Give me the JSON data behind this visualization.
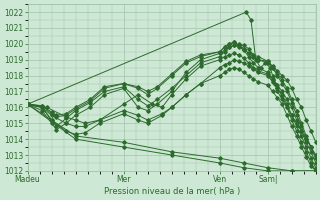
{
  "xlabel": "Pression niveau de la mer( hPa )",
  "background_color": "#cde8d4",
  "plot_bg_color": "#cde8d4",
  "grid_color": "#9abba0",
  "line_color": "#2d6a2d",
  "ylim": [
    1012,
    1022.5
  ],
  "yticks": [
    1012,
    1013,
    1014,
    1015,
    1016,
    1017,
    1018,
    1019,
    1020,
    1021,
    1022
  ],
  "xtick_labels": [
    "Madeu",
    "Mer",
    "Ven",
    "Sam|"
  ],
  "xtick_positions": [
    0,
    2,
    4,
    5
  ],
  "total_days": 6,
  "series": [
    {
      "points": [
        [
          0,
          1016.2
        ],
        [
          0.3,
          1016.0
        ],
        [
          0.5,
          1015.2
        ],
        [
          0.6,
          1014.8
        ],
        [
          0.8,
          1015.3
        ],
        [
          1.0,
          1015.8
        ],
        [
          1.3,
          1016.3
        ],
        [
          1.6,
          1017.0
        ],
        [
          2.0,
          1017.3
        ],
        [
          2.3,
          1016.5
        ],
        [
          2.5,
          1016.1
        ],
        [
          2.7,
          1016.5
        ],
        [
          3.0,
          1017.2
        ],
        [
          3.3,
          1018.0
        ],
        [
          3.6,
          1018.8
        ],
        [
          4.0,
          1019.2
        ],
        [
          4.1,
          1019.5
        ],
        [
          4.2,
          1019.8
        ],
        [
          4.3,
          1019.9
        ],
        [
          4.4,
          1020.0
        ],
        [
          4.5,
          1019.9
        ],
        [
          4.6,
          1019.7
        ],
        [
          4.7,
          1019.3
        ],
        [
          4.8,
          1019.2
        ],
        [
          5.0,
          1018.9
        ],
        [
          5.1,
          1018.6
        ],
        [
          5.2,
          1018.3
        ],
        [
          5.3,
          1018.0
        ],
        [
          5.4,
          1017.7
        ],
        [
          5.5,
          1017.2
        ],
        [
          5.6,
          1016.5
        ],
        [
          5.7,
          1016.0
        ],
        [
          5.8,
          1015.2
        ],
        [
          5.9,
          1014.5
        ],
        [
          6.0,
          1013.8
        ]
      ]
    },
    {
      "points": [
        [
          0,
          1016.2
        ],
        [
          0.3,
          1015.8
        ],
        [
          0.5,
          1015.0
        ],
        [
          0.6,
          1014.6
        ],
        [
          0.8,
          1015.0
        ],
        [
          1.0,
          1015.5
        ],
        [
          1.3,
          1016.0
        ],
        [
          1.6,
          1016.8
        ],
        [
          2.0,
          1017.2
        ],
        [
          2.3,
          1016.0
        ],
        [
          2.5,
          1015.8
        ],
        [
          2.7,
          1016.2
        ],
        [
          3.0,
          1017.0
        ],
        [
          3.3,
          1018.2
        ],
        [
          3.6,
          1019.0
        ],
        [
          4.0,
          1019.4
        ],
        [
          4.1,
          1019.6
        ],
        [
          4.2,
          1019.8
        ],
        [
          4.3,
          1019.9
        ],
        [
          4.4,
          1019.8
        ],
        [
          4.5,
          1019.6
        ],
        [
          4.6,
          1019.2
        ],
        [
          4.7,
          1018.8
        ],
        [
          4.8,
          1018.5
        ],
        [
          5.0,
          1018.2
        ],
        [
          5.1,
          1017.8
        ],
        [
          5.2,
          1017.4
        ],
        [
          5.3,
          1017.0
        ],
        [
          5.4,
          1016.5
        ],
        [
          5.5,
          1016.0
        ],
        [
          5.6,
          1015.2
        ],
        [
          5.7,
          1014.5
        ],
        [
          5.8,
          1013.8
        ],
        [
          5.9,
          1013.2
        ],
        [
          6.0,
          1012.5
        ]
      ]
    },
    {
      "points": [
        [
          0,
          1016.2
        ],
        [
          0.3,
          1016.1
        ],
        [
          0.5,
          1015.6
        ],
        [
          0.6,
          1015.4
        ],
        [
          0.8,
          1015.5
        ],
        [
          1.0,
          1015.9
        ],
        [
          1.3,
          1016.4
        ],
        [
          1.6,
          1017.2
        ],
        [
          2.0,
          1017.5
        ],
        [
          2.3,
          1017.2
        ],
        [
          2.5,
          1016.8
        ],
        [
          2.7,
          1017.2
        ],
        [
          3.0,
          1018.0
        ],
        [
          3.3,
          1018.8
        ],
        [
          3.6,
          1019.2
        ],
        [
          4.0,
          1019.5
        ],
        [
          4.1,
          1019.8
        ],
        [
          4.2,
          1020.0
        ],
        [
          4.3,
          1020.1
        ],
        [
          4.4,
          1019.9
        ],
        [
          4.5,
          1019.7
        ],
        [
          4.6,
          1019.4
        ],
        [
          4.7,
          1019.2
        ],
        [
          4.8,
          1019.0
        ],
        [
          5.0,
          1018.8
        ],
        [
          5.1,
          1018.5
        ],
        [
          5.2,
          1018.0
        ],
        [
          5.3,
          1017.5
        ],
        [
          5.4,
          1017.0
        ],
        [
          5.5,
          1016.3
        ],
        [
          5.6,
          1015.5
        ],
        [
          5.7,
          1014.8
        ],
        [
          5.8,
          1014.0
        ],
        [
          5.9,
          1013.5
        ],
        [
          6.0,
          1012.8
        ]
      ]
    },
    {
      "points": [
        [
          0,
          1016.2
        ],
        [
          0.3,
          1016.1
        ],
        [
          0.5,
          1015.7
        ],
        [
          0.6,
          1015.5
        ],
        [
          0.8,
          1015.6
        ],
        [
          1.0,
          1016.0
        ],
        [
          1.3,
          1016.5
        ],
        [
          1.6,
          1017.3
        ],
        [
          2.0,
          1017.5
        ],
        [
          2.3,
          1017.3
        ],
        [
          2.5,
          1017.0
        ],
        [
          2.7,
          1017.3
        ],
        [
          3.0,
          1018.1
        ],
        [
          3.3,
          1018.9
        ],
        [
          3.6,
          1019.3
        ],
        [
          4.0,
          1019.5
        ],
        [
          4.1,
          1019.8
        ],
        [
          4.2,
          1020.0
        ],
        [
          4.3,
          1020.1
        ],
        [
          4.4,
          1019.9
        ],
        [
          4.5,
          1019.7
        ],
        [
          4.6,
          1019.4
        ],
        [
          4.7,
          1019.2
        ],
        [
          4.8,
          1019.0
        ],
        [
          5.0,
          1018.9
        ],
        [
          5.1,
          1018.5
        ],
        [
          5.2,
          1018.1
        ],
        [
          5.3,
          1017.7
        ],
        [
          5.4,
          1017.2
        ],
        [
          5.5,
          1016.5
        ],
        [
          5.6,
          1015.8
        ],
        [
          5.7,
          1015.0
        ],
        [
          5.8,
          1014.2
        ],
        [
          5.9,
          1013.5
        ],
        [
          6.0,
          1012.8
        ]
      ]
    },
    {
      "points": [
        [
          0,
          1016.2
        ],
        [
          0.4,
          1016.0
        ],
        [
          0.8,
          1015.4
        ],
        [
          1.0,
          1015.2
        ],
        [
          1.2,
          1015.0
        ],
        [
          1.5,
          1015.2
        ],
        [
          2.0,
          1016.2
        ],
        [
          2.3,
          1016.8
        ],
        [
          2.6,
          1016.2
        ],
        [
          2.8,
          1016.0
        ],
        [
          3.0,
          1016.8
        ],
        [
          3.3,
          1017.8
        ],
        [
          3.6,
          1018.6
        ],
        [
          4.0,
          1019.0
        ],
        [
          4.1,
          1019.2
        ],
        [
          4.2,
          1019.3
        ],
        [
          4.3,
          1019.4
        ],
        [
          4.4,
          1019.3
        ],
        [
          4.5,
          1019.1
        ],
        [
          4.6,
          1018.8
        ],
        [
          4.7,
          1018.5
        ],
        [
          4.8,
          1018.3
        ],
        [
          5.0,
          1018.1
        ],
        [
          5.1,
          1017.7
        ],
        [
          5.2,
          1017.2
        ],
        [
          5.3,
          1016.8
        ],
        [
          5.4,
          1016.2
        ],
        [
          5.5,
          1015.5
        ],
        [
          5.6,
          1014.8
        ],
        [
          5.7,
          1014.2
        ],
        [
          5.8,
          1013.5
        ],
        [
          5.9,
          1012.8
        ],
        [
          6.0,
          1012.2
        ]
      ]
    },
    {
      "points": [
        [
          0,
          1016.2
        ],
        [
          0.3,
          1016.0
        ],
        [
          0.5,
          1015.2
        ],
        [
          0.8,
          1014.5
        ],
        [
          1.0,
          1014.3
        ],
        [
          1.2,
          1014.4
        ],
        [
          1.5,
          1015.0
        ],
        [
          2.0,
          1015.6
        ],
        [
          2.3,
          1015.2
        ],
        [
          2.5,
          1015.0
        ],
        [
          2.8,
          1015.5
        ],
        [
          3.0,
          1016.0
        ],
        [
          3.3,
          1016.8
        ],
        [
          3.6,
          1017.5
        ],
        [
          4.0,
          1018.5
        ],
        [
          4.1,
          1018.7
        ],
        [
          4.2,
          1018.8
        ],
        [
          4.3,
          1019.0
        ],
        [
          4.4,
          1018.9
        ],
        [
          4.5,
          1018.8
        ],
        [
          4.6,
          1018.6
        ],
        [
          4.7,
          1018.4
        ],
        [
          4.8,
          1018.2
        ],
        [
          5.0,
          1018.0
        ],
        [
          5.1,
          1017.6
        ],
        [
          5.2,
          1017.2
        ],
        [
          5.3,
          1016.7
        ],
        [
          5.4,
          1016.0
        ],
        [
          5.5,
          1015.2
        ],
        [
          5.6,
          1014.5
        ],
        [
          5.7,
          1013.8
        ],
        [
          5.8,
          1013.2
        ],
        [
          5.9,
          1012.5
        ],
        [
          6.0,
          1012.0
        ]
      ]
    },
    {
      "points": [
        [
          0,
          1016.2
        ],
        [
          0.3,
          1016.0
        ],
        [
          0.5,
          1015.5
        ],
        [
          0.8,
          1015.0
        ],
        [
          1.0,
          1014.8
        ],
        [
          1.2,
          1014.8
        ],
        [
          1.5,
          1015.2
        ],
        [
          2.0,
          1015.8
        ],
        [
          2.3,
          1015.5
        ],
        [
          2.5,
          1015.2
        ],
        [
          2.8,
          1015.6
        ],
        [
          3.0,
          1016.0
        ],
        [
          3.3,
          1016.8
        ],
        [
          3.6,
          1017.5
        ],
        [
          4.0,
          1018.0
        ],
        [
          4.1,
          1018.2
        ],
        [
          4.2,
          1018.4
        ],
        [
          4.3,
          1018.5
        ],
        [
          4.4,
          1018.4
        ],
        [
          4.5,
          1018.2
        ],
        [
          4.6,
          1018.0
        ],
        [
          4.7,
          1017.8
        ],
        [
          4.8,
          1017.6
        ],
        [
          5.0,
          1017.4
        ],
        [
          5.1,
          1017.0
        ],
        [
          5.2,
          1016.6
        ],
        [
          5.3,
          1016.2
        ],
        [
          5.4,
          1015.5
        ],
        [
          5.5,
          1014.8
        ],
        [
          5.6,
          1014.2
        ],
        [
          5.7,
          1013.5
        ],
        [
          5.8,
          1012.9
        ],
        [
          5.9,
          1012.3
        ],
        [
          6.0,
          1012.0
        ]
      ]
    },
    {
      "points": [
        [
          0,
          1016.2
        ],
        [
          4.55,
          1022.0
        ],
        [
          4.65,
          1021.5
        ],
        [
          4.75,
          1019.0
        ],
        [
          4.85,
          1018.5
        ],
        [
          4.95,
          1018.8
        ],
        [
          5.05,
          1018.5
        ],
        [
          5.1,
          1018.0
        ],
        [
          5.15,
          1017.5
        ],
        [
          5.2,
          1017.0
        ],
        [
          5.3,
          1016.5
        ],
        [
          5.4,
          1016.0
        ],
        [
          5.5,
          1015.5
        ],
        [
          5.6,
          1015.0
        ],
        [
          5.7,
          1014.5
        ],
        [
          5.8,
          1014.0
        ],
        [
          5.9,
          1013.5
        ],
        [
          6.0,
          1013.0
        ]
      ]
    },
    {
      "points": [
        [
          0,
          1016.2
        ],
        [
          1.0,
          1014.0
        ],
        [
          2.0,
          1013.5
        ],
        [
          3.0,
          1013.0
        ],
        [
          4.0,
          1012.5
        ],
        [
          4.5,
          1012.2
        ],
        [
          5.0,
          1012.0
        ],
        [
          5.5,
          1012.0
        ],
        [
          6.0,
          1012.0
        ]
      ]
    },
    {
      "points": [
        [
          0,
          1016.2
        ],
        [
          1.0,
          1014.2
        ],
        [
          2.0,
          1013.8
        ],
        [
          3.0,
          1013.2
        ],
        [
          4.0,
          1012.8
        ],
        [
          4.5,
          1012.5
        ],
        [
          5.0,
          1012.2
        ],
        [
          5.5,
          1012.0
        ],
        [
          6.0,
          1012.0
        ]
      ]
    }
  ]
}
